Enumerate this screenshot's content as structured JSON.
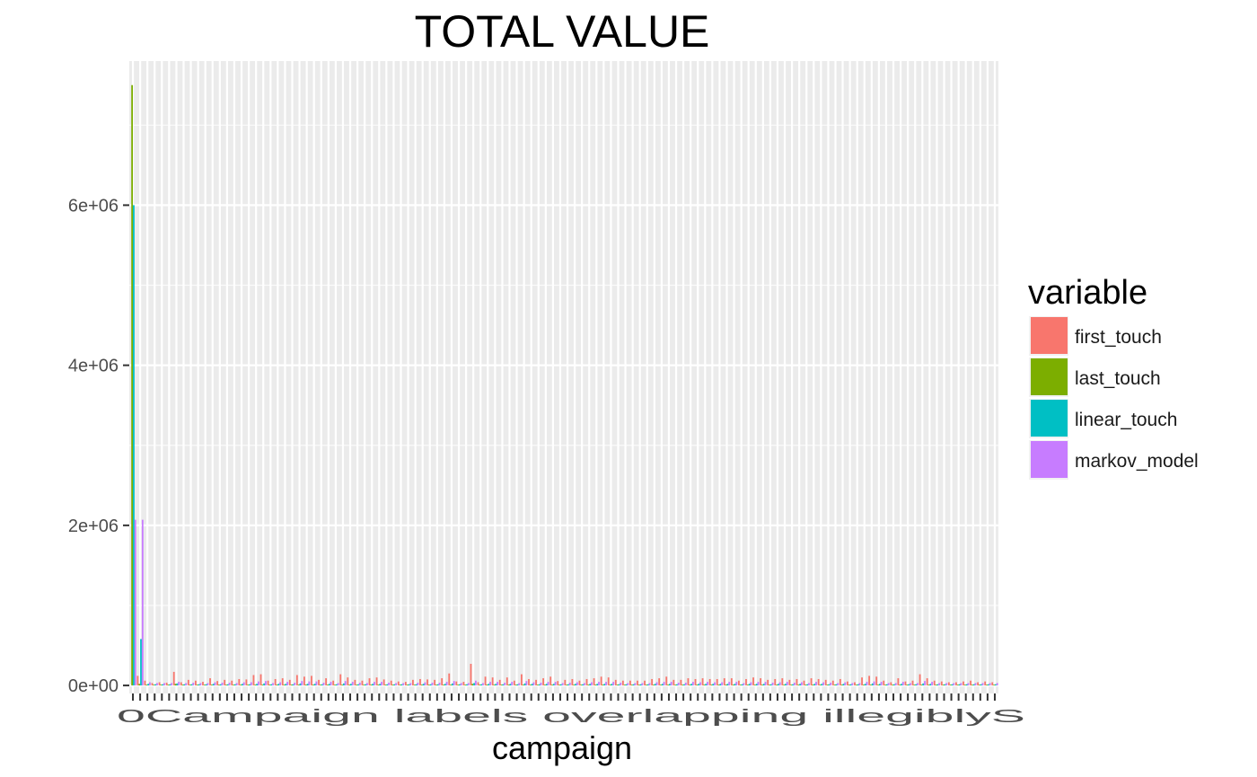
{
  "chart_data": {
    "type": "bar",
    "title": "TOTAL VALUE",
    "xlabel": "campaign",
    "ylabel": "",
    "ylim": [
      -100000,
      7800000
    ],
    "yticks": [
      0,
      2000000,
      4000000,
      6000000
    ],
    "ytick_labels": [
      "0e+00",
      "2e+06",
      "4e+06",
      "6e+06"
    ],
    "grid": true,
    "legend_position": "right",
    "legend": {
      "title": "variable",
      "entries": [
        "first_touch",
        "last_touch",
        "linear_touch",
        "markov_model"
      ]
    },
    "colors": {
      "first_touch": "#F8766D",
      "last_touch": "#7CAE00",
      "linear_touch": "#00BFC4",
      "markov_model": "#C77CFF"
    },
    "x_tick_text": "0Campaign labels overlapping illegiblyS",
    "num_categories": 120,
    "categories_note_free": true,
    "series": [
      {
        "name": "first_touch",
        "values": [
          0,
          120000,
          60000,
          30000,
          40000,
          35000,
          170000,
          40000,
          70000,
          60000,
          45000,
          90000,
          55000,
          70000,
          60000,
          80000,
          75000,
          130000,
          140000,
          60000,
          80000,
          90000,
          70000,
          130000,
          110000,
          120000,
          70000,
          90000,
          60000,
          140000,
          100000,
          70000,
          60000,
          90000,
          100000,
          75000,
          60000,
          50000,
          45000,
          70000,
          80000,
          75000,
          70000,
          90000,
          150000,
          50000,
          45000,
          270000,
          40000,
          110000,
          100000,
          70000,
          100000,
          60000,
          140000,
          80000,
          70000,
          90000,
          110000,
          55000,
          70000,
          80000,
          60000,
          80000,
          90000,
          110000,
          100000,
          70000,
          60000,
          60000,
          60000,
          60000,
          80000,
          90000,
          110000,
          70000,
          70000,
          90000,
          80000,
          90000,
          80000,
          80000,
          90000,
          90000,
          60000,
          80000,
          100000,
          90000,
          70000,
          80000,
          90000,
          70000,
          80000,
          60000,
          90000,
          80000,
          70000,
          60000,
          80000,
          50000,
          40000,
          100000,
          120000,
          110000,
          60000,
          40000,
          90000,
          50000,
          60000,
          140000,
          90000,
          60000,
          50000,
          40000,
          40000,
          50000,
          60000,
          40000,
          50000,
          40000
        ]
      },
      {
        "name": "last_touch",
        "values": [
          7500000,
          20000,
          10000,
          10000,
          10000,
          10000,
          20000,
          10000,
          10000,
          10000,
          10000,
          10000,
          10000,
          10000,
          10000,
          10000,
          10000,
          10000,
          10000,
          10000,
          10000,
          10000,
          10000,
          10000,
          10000,
          10000,
          10000,
          10000,
          10000,
          10000,
          10000,
          10000,
          10000,
          10000,
          10000,
          10000,
          10000,
          10000,
          10000,
          10000,
          10000,
          10000,
          10000,
          10000,
          10000,
          10000,
          10000,
          20000,
          10000,
          10000,
          10000,
          10000,
          10000,
          10000,
          10000,
          10000,
          10000,
          10000,
          10000,
          10000,
          10000,
          10000,
          10000,
          10000,
          10000,
          10000,
          10000,
          10000,
          10000,
          10000,
          10000,
          10000,
          10000,
          10000,
          10000,
          10000,
          10000,
          10000,
          10000,
          10000,
          10000,
          10000,
          10000,
          10000,
          10000,
          10000,
          10000,
          10000,
          10000,
          10000,
          10000,
          10000,
          10000,
          10000,
          10000,
          10000,
          10000,
          10000,
          10000,
          10000,
          10000,
          10000,
          10000,
          10000,
          10000,
          10000,
          10000,
          10000,
          10000,
          10000,
          10000,
          10000,
          10000,
          10000,
          10000,
          10000,
          10000,
          10000,
          10000,
          10000
        ]
      },
      {
        "name": "linear_touch",
        "values": [
          6000000,
          580000,
          20000,
          15000,
          15000,
          15000,
          25000,
          15000,
          15000,
          15000,
          15000,
          20000,
          15000,
          15000,
          15000,
          20000,
          15000,
          20000,
          25000,
          15000,
          20000,
          20000,
          15000,
          25000,
          20000,
          20000,
          15000,
          20000,
          15000,
          25000,
          20000,
          15000,
          15000,
          20000,
          20000,
          15000,
          15000,
          15000,
          15000,
          15000,
          20000,
          15000,
          15000,
          20000,
          25000,
          15000,
          15000,
          30000,
          15000,
          20000,
          20000,
          15000,
          20000,
          15000,
          25000,
          20000,
          15000,
          20000,
          20000,
          15000,
          15000,
          20000,
          15000,
          20000,
          20000,
          20000,
          20000,
          15000,
          15000,
          15000,
          15000,
          15000,
          20000,
          20000,
          20000,
          15000,
          15000,
          20000,
          20000,
          20000,
          20000,
          20000,
          20000,
          20000,
          15000,
          20000,
          20000,
          20000,
          15000,
          20000,
          20000,
          15000,
          20000,
          15000,
          20000,
          20000,
          15000,
          15000,
          20000,
          15000,
          15000,
          20000,
          25000,
          20000,
          15000,
          15000,
          20000,
          15000,
          15000,
          25000,
          20000,
          15000,
          15000,
          15000,
          15000,
          15000,
          15000,
          15000,
          15000,
          15000
        ]
      },
      {
        "name": "markov_model",
        "values": [
          2070000,
          2070000,
          40000,
          30000,
          30000,
          30000,
          45000,
          30000,
          35000,
          30000,
          30000,
          40000,
          35000,
          35000,
          30000,
          40000,
          40000,
          50000,
          55000,
          30000,
          40000,
          45000,
          35000,
          55000,
          50000,
          50000,
          35000,
          45000,
          30000,
          55000,
          45000,
          35000,
          30000,
          45000,
          45000,
          35000,
          30000,
          30000,
          30000,
          35000,
          40000,
          35000,
          35000,
          45000,
          55000,
          30000,
          30000,
          60000,
          30000,
          45000,
          45000,
          35000,
          45000,
          30000,
          55000,
          40000,
          35000,
          45000,
          45000,
          30000,
          35000,
          40000,
          30000,
          40000,
          45000,
          45000,
          45000,
          35000,
          30000,
          30000,
          30000,
          30000,
          40000,
          45000,
          45000,
          35000,
          35000,
          45000,
          40000,
          45000,
          40000,
          40000,
          45000,
          45000,
          30000,
          40000,
          45000,
          45000,
          35000,
          40000,
          45000,
          35000,
          40000,
          30000,
          45000,
          40000,
          35000,
          30000,
          40000,
          30000,
          30000,
          45000,
          50000,
          45000,
          30000,
          30000,
          45000,
          30000,
          30000,
          55000,
          45000,
          30000,
          30000,
          30000,
          30000,
          30000,
          30000,
          30000,
          30000,
          30000
        ]
      }
    ]
  }
}
